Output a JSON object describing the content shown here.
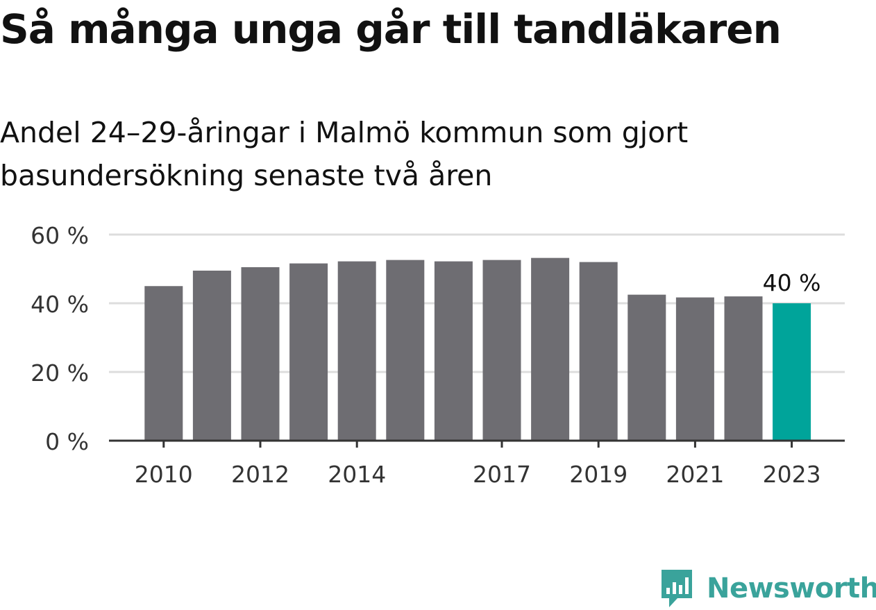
{
  "title": "Så många unga går till tandläkaren",
  "subtitle": "Andel 24–29-åringar i Malmö kommun som gjort basundersökning senaste två åren",
  "brand": {
    "name": "Newsworthy",
    "color": "#3aa39b",
    "icon": "newsworthy-logo-icon"
  },
  "colors": {
    "bar": "#6e6d72",
    "highlight": "#00a49a",
    "grid": "#dddddd",
    "axis": "#333333"
  },
  "chart_data": {
    "type": "bar",
    "categories": [
      "2010",
      "2011",
      "2012",
      "2013",
      "2014",
      "2015",
      "2016",
      "2017",
      "2018",
      "2019",
      "2020",
      "2021",
      "2022",
      "2023"
    ],
    "values": [
      45,
      49.5,
      50.5,
      51.6,
      52.2,
      52.6,
      52.2,
      52.6,
      53.2,
      52,
      42.5,
      41.7,
      42,
      40
    ],
    "xtick_labels": [
      "2010",
      "2012",
      "2014",
      "2017",
      "2019",
      "2021",
      "2023"
    ],
    "yticks": [
      0,
      20,
      40,
      60
    ],
    "ytick_labels": [
      "0 %",
      "20 %",
      "40 %",
      "60 %"
    ],
    "ylim": [
      0,
      60
    ],
    "highlight_index": 13,
    "data_labels": [
      {
        "index": 13,
        "text": "40 %"
      }
    ],
    "grid": true,
    "xlabel": "",
    "ylabel": ""
  }
}
